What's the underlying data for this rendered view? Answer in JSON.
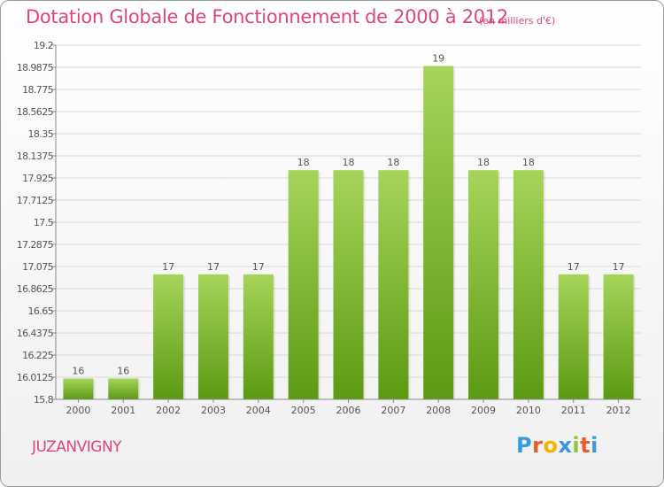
{
  "header": {
    "title": "Dotation Globale de Fonctionnement de 2000 à 2012",
    "unit": "(en milliers d'€)"
  },
  "footer": {
    "town": "JUZANVIGNY",
    "logo_letters": [
      "P",
      "r",
      "o",
      "x",
      "i",
      "t",
      "i"
    ],
    "logo_colors": [
      "#3a9ad9",
      "#e95a2a",
      "#f4b400",
      "#3a9ad9",
      "#8cc63f",
      "#e95a2a",
      "#3a9ad9"
    ]
  },
  "colors": {
    "bar_top": "#a6d45a",
    "bar_bottom": "#5c9a12",
    "grid": "#d8d8d8",
    "text": "#555555",
    "accent": "#e0457a"
  },
  "chart_data": {
    "type": "bar",
    "categories": [
      "2000",
      "2001",
      "2002",
      "2003",
      "2004",
      "2005",
      "2006",
      "2007",
      "2008",
      "2009",
      "2010",
      "2011",
      "2012"
    ],
    "values": [
      16,
      16,
      17,
      17,
      17,
      18,
      18,
      18,
      19,
      18,
      18,
      17,
      17
    ],
    "value_labels": [
      "16",
      "16",
      "17",
      "17",
      "17",
      "18",
      "18",
      "18",
      "19",
      "18",
      "18",
      "17",
      "17"
    ],
    "ylim": [
      15.8,
      19.2
    ],
    "yticks": [
      "15.8",
      "16.0125",
      "16.225",
      "16.4375",
      "16.65",
      "16.8625",
      "17.075",
      "17.2875",
      "17.5",
      "17.7125",
      "17.925",
      "18.1375",
      "18.35",
      "18.5625",
      "18.775",
      "18.9875",
      "19.2"
    ],
    "grid": true
  }
}
